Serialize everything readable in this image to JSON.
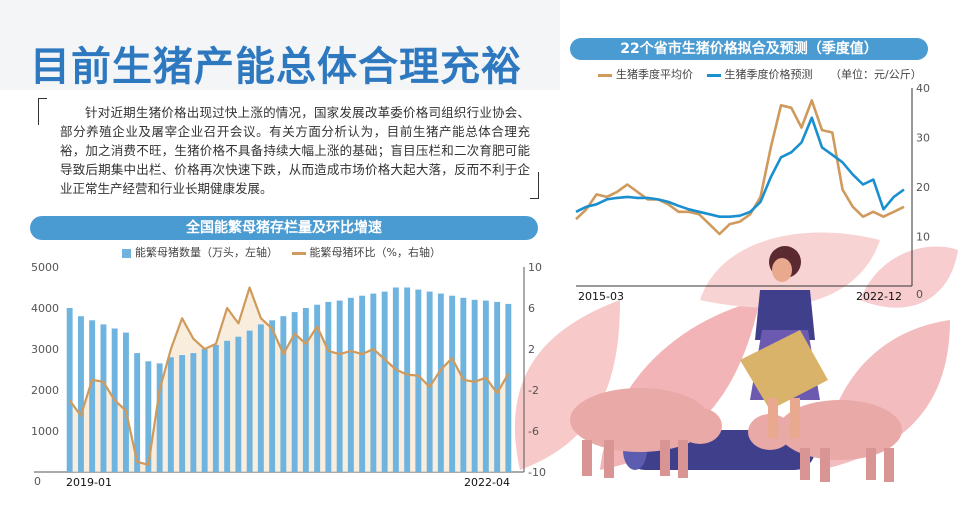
{
  "headline": "目前生猪产能总体合理充裕",
  "intro": "针对近期生猪价格出现过快上涨的情况，国家发展改革委价格司组织行业协会、部分养殖企业及屠宰企业召开会议。有关方面分析认为，目前生猪产能总体合理充裕，加之消费不旺，生猪价格不具备持续大幅上涨的基础；盲目压栏和二次育肥可能导致后期集中出栏、价格再次快速下跌，从而造成市场价格大起大落，反而不利于企业正常生产经营和行业长期健康发展。",
  "colors": {
    "blue": "#4a9bd1",
    "bar": "#6fb3df",
    "orange": "#cf9a5c",
    "line_blue": "#1a8fcf"
  },
  "chart_data": [
    {
      "type": "bar",
      "title": "全国能繁母猪存栏量及环比增速",
      "legend": [
        "能繁母猪数量（万头，左轴）",
        "能繁母猪环比（%，右轴）"
      ],
      "x_start_label": "2019-01",
      "x_end_label": "2022-04",
      "left_axis": {
        "ticks": [
          "5000",
          "4000",
          "3000",
          "2000",
          "1000",
          "0"
        ],
        "range": [
          0,
          5000
        ]
      },
      "right_axis": {
        "ticks": [
          "10",
          "6",
          "2",
          "-2",
          "-6",
          "-10"
        ],
        "range": [
          -10,
          10
        ]
      },
      "series": [
        {
          "name": "能繁母猪数量（万头，左轴）",
          "kind": "bar",
          "values": [
            4000,
            3800,
            3700,
            3600,
            3500,
            3400,
            2900,
            2700,
            2650,
            2800,
            2850,
            2900,
            3000,
            3100,
            3200,
            3300,
            3450,
            3600,
            3700,
            3800,
            3900,
            4000,
            4080,
            4150,
            4180,
            4250,
            4300,
            4350,
            4400,
            4500,
            4500,
            4450,
            4400,
            4350,
            4300,
            4250,
            4200,
            4180,
            4150,
            4100
          ]
        },
        {
          "name": "能繁母猪环比（%，右轴）",
          "kind": "line",
          "values": [
            -3.0,
            -4.5,
            -1.0,
            -1.2,
            -3.0,
            -4.0,
            -9.0,
            -9.3,
            -2.0,
            2.0,
            5.0,
            3.0,
            2.0,
            2.5,
            6.0,
            4.5,
            8.0,
            5.0,
            4.0,
            1.5,
            3.5,
            2.5,
            4.2,
            1.8,
            1.5,
            1.8,
            1.5,
            2.0,
            1.0,
            0.0,
            -0.5,
            -0.6,
            -1.7,
            0.0,
            1.1,
            -1.0,
            -1.2,
            -0.8,
            -2.3,
            -0.4
          ]
        }
      ]
    },
    {
      "type": "line",
      "title": "22个省市生猪价格拟合及预测（季度值）",
      "legend": [
        "生猪季度平均价",
        "生猪季度价格预测"
      ],
      "unit": "（单位：元/公斤）",
      "x_start_label": "2015-03",
      "x_end_label": "2022-12",
      "y_axis": {
        "ticks": [
          "40",
          "30",
          "20",
          "10",
          "0"
        ],
        "range": [
          0,
          40
        ]
      },
      "series": [
        {
          "name": "生猪季度平均价",
          "values": [
            13.5,
            15.5,
            18.5,
            18.0,
            19.0,
            20.5,
            19.0,
            17.5,
            17.5,
            16.5,
            15.0,
            15.0,
            14.5,
            12.5,
            10.5,
            12.5,
            13.0,
            14.5,
            18.0,
            28.0,
            36.5,
            36.0,
            32.0,
            37.5,
            31.5,
            31.0,
            19.5,
            16.0,
            14.0,
            15.0,
            14.0,
            15.0,
            16.0
          ]
        },
        {
          "name": "生猪季度价格预测",
          "values": [
            15.0,
            16.0,
            16.5,
            17.5,
            17.8,
            18.0,
            17.8,
            17.8,
            17.5,
            17.0,
            16.2,
            15.5,
            15.0,
            14.5,
            14.0,
            14.0,
            14.2,
            15.0,
            17.0,
            22.0,
            26.0,
            27.0,
            29.0,
            34.0,
            28.0,
            26.5,
            25.0,
            22.5,
            20.5,
            21.5,
            15.5,
            18.0,
            19.5
          ]
        }
      ]
    }
  ]
}
